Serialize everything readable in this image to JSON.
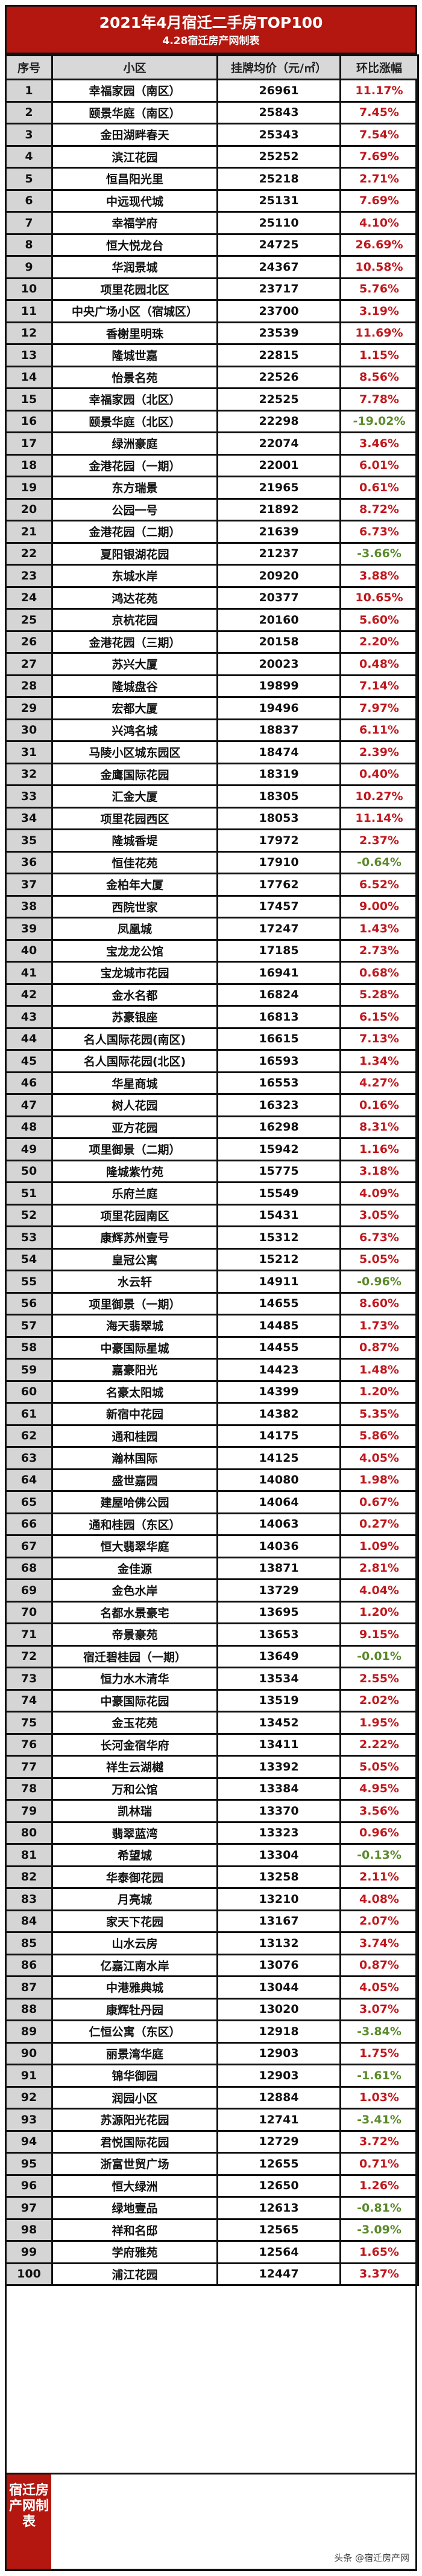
{
  "header": {
    "title": "2021年4月宿迁二手房TOP100",
    "subtitle": "4.28宿迁房产网制表"
  },
  "columns": [
    "序号",
    "小区",
    "挂牌均价（元/㎡）",
    "环比涨幅"
  ],
  "colors": {
    "title_bg": "#b3170f",
    "positive": "#c1161b",
    "negative": "#5b8a2b"
  },
  "rows": [
    [
      "1",
      "幸福家园（南区）",
      "26961",
      "11.17%"
    ],
    [
      "2",
      "颐景华庭（南区）",
      "25843",
      "7.45%"
    ],
    [
      "3",
      "金田湖畔春天",
      "25343",
      "7.54%"
    ],
    [
      "4",
      "滨江花园",
      "25252",
      "7.69%"
    ],
    [
      "5",
      "恒昌阳光里",
      "25218",
      "2.71%"
    ],
    [
      "6",
      "中远现代城",
      "25131",
      "7.69%"
    ],
    [
      "7",
      "幸福学府",
      "25110",
      "4.10%"
    ],
    [
      "8",
      "恒大悦龙台",
      "24725",
      "26.69%"
    ],
    [
      "9",
      "华润景城",
      "24367",
      "10.58%"
    ],
    [
      "10",
      "项里花园北区",
      "23717",
      "5.76%"
    ],
    [
      "11",
      "中央广场小区（宿城区）",
      "23700",
      "3.19%"
    ],
    [
      "12",
      "香榭里明珠",
      "23539",
      "11.69%"
    ],
    [
      "13",
      "隆城世嘉",
      "22815",
      "1.15%"
    ],
    [
      "14",
      "怡景名苑",
      "22526",
      "8.56%"
    ],
    [
      "15",
      "幸福家园（北区）",
      "22525",
      "7.78%"
    ],
    [
      "16",
      "颐景华庭（北区）",
      "22298",
      "-19.02%"
    ],
    [
      "17",
      "绿洲豪庭",
      "22074",
      "3.46%"
    ],
    [
      "18",
      "金港花园（一期）",
      "22001",
      "6.01%"
    ],
    [
      "19",
      "东方瑞景",
      "21965",
      "0.61%"
    ],
    [
      "20",
      "公园一号",
      "21892",
      "8.72%"
    ],
    [
      "21",
      "金港花园（二期）",
      "21639",
      "6.73%"
    ],
    [
      "22",
      "夏阳银湖花园",
      "21237",
      "-3.66%"
    ],
    [
      "23",
      "东城水岸",
      "20920",
      "3.88%"
    ],
    [
      "24",
      "鸿达花苑",
      "20377",
      "10.65%"
    ],
    [
      "25",
      "京杭花园",
      "20160",
      "5.60%"
    ],
    [
      "26",
      "金港花园（三期）",
      "20158",
      "2.20%"
    ],
    [
      "27",
      "苏兴大厦",
      "20023",
      "0.48%"
    ],
    [
      "28",
      "隆城盘谷",
      "19899",
      "7.14%"
    ],
    [
      "29",
      "宏都大厦",
      "19496",
      "7.97%"
    ],
    [
      "30",
      "兴鸿名城",
      "18837",
      "6.11%"
    ],
    [
      "31",
      "马陵小区城东园区",
      "18474",
      "2.39%"
    ],
    [
      "32",
      "金鹰国际花园",
      "18319",
      "0.40%"
    ],
    [
      "33",
      "汇金大厦",
      "18305",
      "10.27%"
    ],
    [
      "34",
      "项里花园西区",
      "18053",
      "11.14%"
    ],
    [
      "35",
      "隆城香堤",
      "17972",
      "2.37%"
    ],
    [
      "36",
      "恒佳花苑",
      "17910",
      "-0.64%"
    ],
    [
      "37",
      "金柏年大厦",
      "17762",
      "6.52%"
    ],
    [
      "38",
      "西院世家",
      "17457",
      "9.00%"
    ],
    [
      "39",
      "凤凰城",
      "17247",
      "1.43%"
    ],
    [
      "40",
      "宝龙龙公馆",
      "17185",
      "2.73%"
    ],
    [
      "41",
      "宝龙城市花园",
      "16941",
      "0.68%"
    ],
    [
      "42",
      "金水名都",
      "16824",
      "5.28%"
    ],
    [
      "43",
      "苏豪银座",
      "16813",
      "6.15%"
    ],
    [
      "44",
      "名人国际花园(南区)",
      "16615",
      "7.13%"
    ],
    [
      "45",
      "名人国际花园(北区)",
      "16593",
      "1.34%"
    ],
    [
      "46",
      "华星商城",
      "16553",
      "4.27%"
    ],
    [
      "47",
      "树人花园",
      "16323",
      "0.16%"
    ],
    [
      "48",
      "亚方花园",
      "16298",
      "8.31%"
    ],
    [
      "49",
      "项里御景（二期）",
      "15942",
      "1.16%"
    ],
    [
      "50",
      "隆城紫竹苑",
      "15775",
      "3.18%"
    ],
    [
      "51",
      "乐府兰庭",
      "15549",
      "4.09%"
    ],
    [
      "52",
      "项里花园南区",
      "15431",
      "3.05%"
    ],
    [
      "53",
      "康辉苏州壹号",
      "15312",
      "6.73%"
    ],
    [
      "54",
      "皇冠公寓",
      "15212",
      "5.05%"
    ],
    [
      "55",
      "水云轩",
      "14911",
      "-0.96%"
    ],
    [
      "56",
      "项里御景（一期）",
      "14655",
      "8.60%"
    ],
    [
      "57",
      "海天翡翠城",
      "14485",
      "1.73%"
    ],
    [
      "58",
      "中豪国际星城",
      "14455",
      "0.87%"
    ],
    [
      "59",
      "嘉豪阳光",
      "14423",
      "1.48%"
    ],
    [
      "60",
      "名豪太阳城",
      "14399",
      "1.20%"
    ],
    [
      "61",
      "新宿中花园",
      "14382",
      "5.35%"
    ],
    [
      "62",
      "通和桂园",
      "14175",
      "5.86%"
    ],
    [
      "63",
      "瀚林国际",
      "14125",
      "4.05%"
    ],
    [
      "64",
      "盛世嘉园",
      "14080",
      "1.98%"
    ],
    [
      "65",
      "建屋哈佛公园",
      "14064",
      "0.67%"
    ],
    [
      "66",
      "通和桂园（东区）",
      "14063",
      "0.27%"
    ],
    [
      "67",
      "恒大翡翠华庭",
      "14036",
      "1.09%"
    ],
    [
      "68",
      "金佳源",
      "13871",
      "2.81%"
    ],
    [
      "69",
      "金色水岸",
      "13729",
      "4.04%"
    ],
    [
      "70",
      "名都水景豪宅",
      "13695",
      "1.20%"
    ],
    [
      "71",
      "帝景豪苑",
      "13653",
      "9.15%"
    ],
    [
      "72",
      "宿迁碧桂园（一期）",
      "13649",
      "-0.01%"
    ],
    [
      "73",
      "恒力水木清华",
      "13534",
      "2.55%"
    ],
    [
      "74",
      "中豪国际花园",
      "13519",
      "2.02%"
    ],
    [
      "75",
      "金玉花苑",
      "13452",
      "1.95%"
    ],
    [
      "76",
      "长河金宿华府",
      "13411",
      "2.22%"
    ],
    [
      "77",
      "祥生云湖樾",
      "13392",
      "5.05%"
    ],
    [
      "78",
      "万和公馆",
      "13384",
      "4.95%"
    ],
    [
      "79",
      "凯林瑞",
      "13370",
      "3.56%"
    ],
    [
      "80",
      "翡翠蓝湾",
      "13323",
      "0.96%"
    ],
    [
      "81",
      "希望城",
      "13304",
      "-0.13%"
    ],
    [
      "82",
      "华泰御花园",
      "13258",
      "2.11%"
    ],
    [
      "83",
      "月亮城",
      "13210",
      "4.08%"
    ],
    [
      "84",
      "家天下花园",
      "13167",
      "2.07%"
    ],
    [
      "85",
      "山水云房",
      "13132",
      "3.74%"
    ],
    [
      "86",
      "亿嘉江南水岸",
      "13076",
      "0.87%"
    ],
    [
      "87",
      "中港雅典城",
      "13044",
      "4.05%"
    ],
    [
      "88",
      "康辉牡丹园",
      "13020",
      "3.07%"
    ],
    [
      "89",
      "仁恒公寓（东区）",
      "12918",
      "-3.84%"
    ],
    [
      "90",
      "丽景湾华庭",
      "12903",
      "1.75%"
    ],
    [
      "91",
      "锦华御园",
      "12903",
      "-1.61%"
    ],
    [
      "92",
      "润园小区",
      "12884",
      "1.03%"
    ],
    [
      "93",
      "苏源阳光花园",
      "12741",
      "-3.41%"
    ],
    [
      "94",
      "君悦国际花园",
      "12729",
      "3.72%"
    ],
    [
      "95",
      "浙富世贸广场",
      "12655",
      "0.71%"
    ],
    [
      "96",
      "恒大绿洲",
      "12650",
      "1.26%"
    ],
    [
      "97",
      "绿地壹品",
      "12613",
      "-0.81%"
    ],
    [
      "98",
      "祥和名邸",
      "12565",
      "-3.09%"
    ],
    [
      "99",
      "学府雅苑",
      "12564",
      "1.65%"
    ],
    [
      "100",
      "浦江花园",
      "12447",
      "3.37%"
    ]
  ],
  "footer": {
    "label": "宿迁房产网制表",
    "watermark": "头条 @宿迁房产网"
  }
}
